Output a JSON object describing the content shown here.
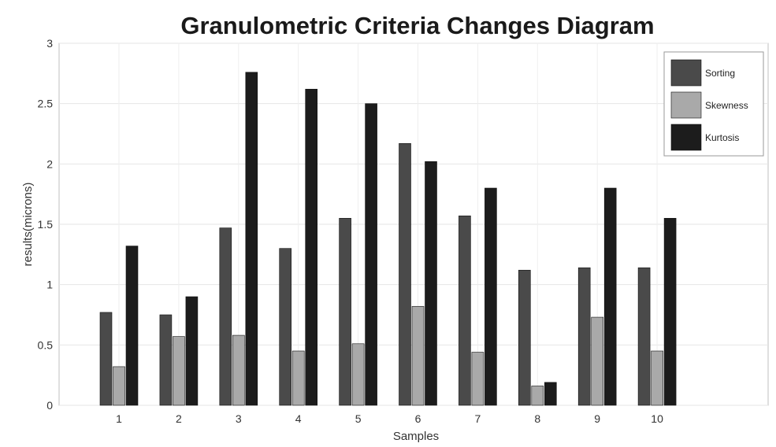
{
  "chart_data": {
    "type": "bar",
    "title": "Granulometric Criteria Changes Diagram",
    "xlabel": "Samples",
    "ylabel": "results(microns)",
    "categories": [
      "1",
      "2",
      "3",
      "4",
      "5",
      "6",
      "7",
      "8",
      "9",
      "10"
    ],
    "ylim": [
      0,
      3
    ],
    "yticks": [
      "0",
      "0.5",
      "1",
      "1.5",
      "2",
      "2.5",
      "3"
    ],
    "grid": true,
    "legend_position": "top-right",
    "series": [
      {
        "name": "Sorting",
        "color": "#4a4a4a",
        "values": [
          0.77,
          0.75,
          1.47,
          1.3,
          1.55,
          2.17,
          1.57,
          1.12,
          1.14,
          1.14
        ]
      },
      {
        "name": "Skewness",
        "color": "#a9a9a9",
        "values": [
          0.32,
          0.57,
          0.58,
          0.45,
          0.51,
          0.82,
          0.44,
          0.16,
          0.73,
          0.45
        ]
      },
      {
        "name": "Kurtosis",
        "color": "#1c1c1c",
        "values": [
          1.32,
          0.9,
          2.76,
          2.62,
          2.5,
          2.02,
          1.8,
          0.19,
          1.8,
          1.55
        ]
      }
    ]
  }
}
